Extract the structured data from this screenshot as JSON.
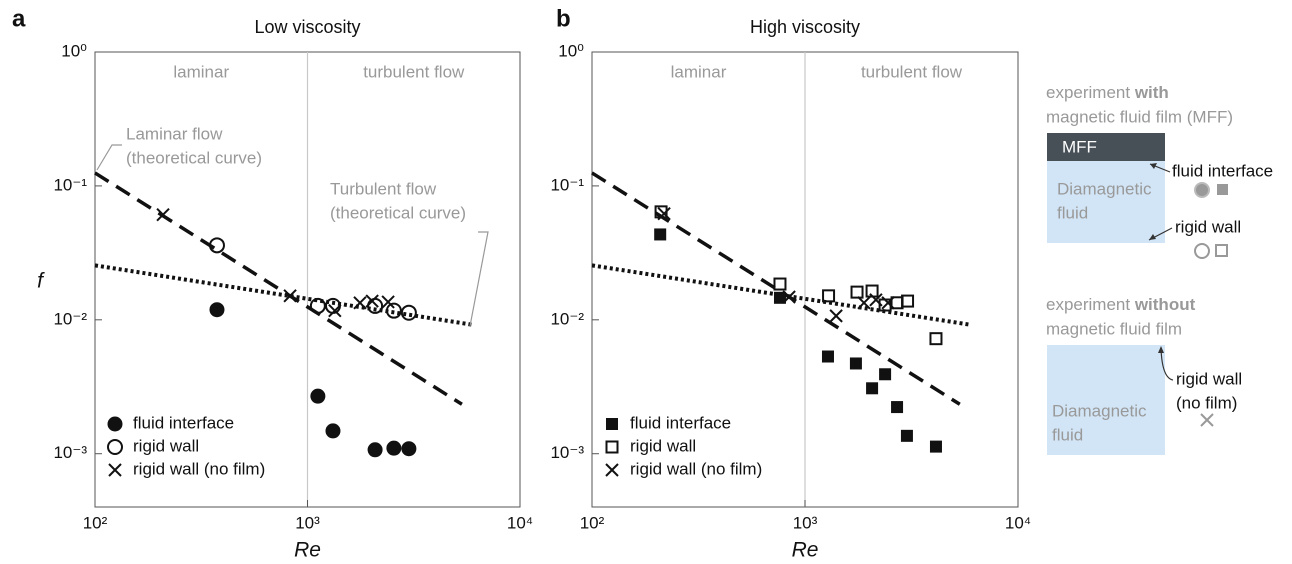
{
  "chart_data": [
    {
      "type": "scatter",
      "panel": "a",
      "title": "Low viscosity",
      "xlabel": "Re",
      "ylabel": "f",
      "xscale": "log",
      "yscale": "log",
      "xlim": [
        100,
        10000
      ],
      "ylim": [
        0.0004,
        1
      ],
      "xticks": [
        {
          "value": 100,
          "label": "10²"
        },
        {
          "value": 1000,
          "label": "10³"
        },
        {
          "value": 10000,
          "label": "10⁴"
        }
      ],
      "yticks": [
        {
          "value": 0.001,
          "label": "10⁻³"
        },
        {
          "value": 0.01,
          "label": "10⁻²"
        },
        {
          "value": 0.1,
          "label": "10⁻¹"
        },
        {
          "value": 1,
          "label": "10⁰"
        }
      ],
      "regions": [
        "laminar",
        "turbulent flow"
      ],
      "transition": 1000,
      "legend": "lower left",
      "curves": [
        {
          "style": "dashed",
          "label_lines": [
            "Laminar flow",
            "(theoretical curve)"
          ],
          "x": [
            100,
            5330
          ],
          "values": [
            0.125,
            0.00234
          ]
        },
        {
          "style": "dotted",
          "label_lines": [
            "Turbulent flow",
            "(theoretical curve)"
          ],
          "x": [
            100,
            5940
          ],
          "values": [
            0.0255,
            0.0092
          ]
        }
      ],
      "series": [
        {
          "name": "fluid interface",
          "marker": "filled-circle",
          "color": "#111",
          "x": [
            375,
            1119,
            1318,
            2080,
            2550,
            3000
          ],
          "values": [
            0.0119,
            0.00269,
            0.00148,
            0.00107,
            0.0011,
            0.00109
          ]
        },
        {
          "name": "rigid wall",
          "marker": "open-circle",
          "color": "#111",
          "x": [
            375,
            1119,
            1318,
            2080,
            2550,
            3000
          ],
          "values": [
            0.036,
            0.0127,
            0.0127,
            0.0127,
            0.0117,
            0.0113
          ]
        },
        {
          "name": "rigid wall (no film)",
          "marker": "cross",
          "color": "#111",
          "x": [
            209,
            828,
            1345,
            1766,
            2015,
            2395
          ],
          "values": [
            0.061,
            0.0151,
            0.0117,
            0.0134,
            0.0138,
            0.0136
          ]
        }
      ]
    },
    {
      "type": "scatter",
      "panel": "b",
      "title": "High viscosity",
      "xlabel": "Re",
      "xscale": "log",
      "yscale": "log",
      "xlim": [
        100,
        10000
      ],
      "ylim": [
        0.0004,
        1
      ],
      "xticks": [
        {
          "value": 100,
          "label": "10²"
        },
        {
          "value": 1000,
          "label": "10³"
        },
        {
          "value": 10000,
          "label": "10⁴"
        }
      ],
      "yticks": [
        {
          "value": 0.001,
          "label": "10⁻³"
        },
        {
          "value": 0.01,
          "label": "10⁻²"
        },
        {
          "value": 0.1,
          "label": "10⁻¹"
        },
        {
          "value": 1,
          "label": "10⁰"
        }
      ],
      "regions": [
        "laminar",
        "turbulent flow"
      ],
      "transition": 1000,
      "legend": "lower left",
      "curves": [
        {
          "style": "dashed",
          "x": [
            100,
            5330
          ],
          "values": [
            0.125,
            0.00234
          ]
        },
        {
          "style": "dotted",
          "x": [
            100,
            5940
          ],
          "values": [
            0.0255,
            0.0092
          ]
        }
      ],
      "series": [
        {
          "name": "fluid interface",
          "marker": "filled-square",
          "color": "#111",
          "x": [
            209,
            763,
            1282,
            1734,
            2065,
            2377,
            2705,
            3010,
            4120
          ],
          "values": [
            0.0434,
            0.0146,
            0.00532,
            0.00472,
            0.00308,
            0.00392,
            0.00223,
            0.00136,
            0.00113
          ]
        },
        {
          "name": "rigid wall",
          "marker": "open-square",
          "color": "#111",
          "x": [
            211,
            763,
            1290,
            1755,
            2065,
            2377,
            2705,
            3030,
            4120
          ],
          "values": [
            0.064,
            0.0185,
            0.0151,
            0.0161,
            0.0164,
            0.0129,
            0.0134,
            0.0138,
            0.00723
          ]
        },
        {
          "name": "rigid wall (no film)",
          "marker": "cross",
          "color": "#111",
          "x": [
            218,
            842,
            1400,
            1892,
            2153,
            2455
          ],
          "values": [
            0.062,
            0.0148,
            0.0107,
            0.0134,
            0.0141,
            0.0134
          ]
        }
      ]
    }
  ],
  "schematic": {
    "with_film": {
      "title_start": "experiment ",
      "title_bold": "with",
      "title_end": "magnetic fluid film (MFF)",
      "film": "MFF",
      "fluid": [
        "Diamagnetic",
        "fluid"
      ],
      "interface": "fluid interface",
      "wall": "rigid wall"
    },
    "without_film": {
      "title_start": "experiment ",
      "title_bold": "without",
      "title_end": "magnetic fluid film",
      "fluid": [
        "Diamagnetic",
        "fluid"
      ],
      "wall": [
        "rigid wall",
        "(no film)"
      ]
    }
  }
}
